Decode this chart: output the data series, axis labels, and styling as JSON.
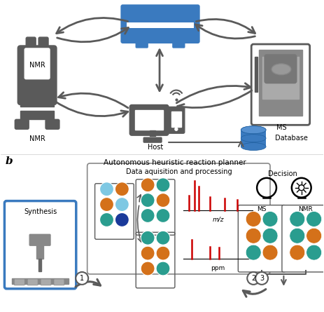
{
  "bg_color": "#ffffff",
  "gray": "#5a5a5a",
  "blue": "#3a7abf",
  "teal": "#2a9d8f",
  "orange": "#d4711a",
  "light_blue": "#7ec8e3",
  "navy": "#1a3a9a",
  "red": "#cc0000",
  "label_b": "b",
  "title_top": "Autonomous heuristic reaction planner",
  "title_data": "Data aquisition and processing",
  "label_synthesis": "Synthesis",
  "label_host": "Host",
  "label_database": "Database",
  "label_nmr_top": "NMR",
  "label_ms_top": "MS",
  "label_decision": "Decision",
  "label_mz": "m/z",
  "label_ppm": "ppm",
  "label_ms_box": "MS",
  "label_nmr_box": "NMR"
}
